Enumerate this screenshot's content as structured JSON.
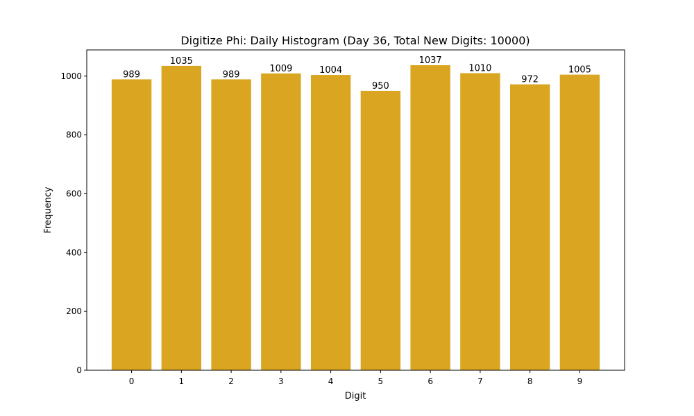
{
  "chart_data": {
    "type": "bar",
    "title": "Digitize Phi: Daily Histogram (Day 36, Total New Digits: 10000)",
    "xlabel": "Digit",
    "ylabel": "Frequency",
    "categories": [
      "0",
      "1",
      "2",
      "3",
      "4",
      "5",
      "6",
      "7",
      "8",
      "9"
    ],
    "values": [
      989,
      1035,
      989,
      1009,
      1004,
      950,
      1037,
      1010,
      972,
      1005
    ],
    "bar_labels": [
      "989",
      "1035",
      "989",
      "1009",
      "1004",
      "950",
      "1037",
      "1010",
      "972",
      "1005"
    ],
    "yticks": [
      0,
      200,
      400,
      600,
      800,
      1000
    ],
    "ylim": [
      0,
      1089
    ],
    "xlim": [
      -0.9,
      9.9
    ],
    "bar_color": "#DAA520",
    "grid": false,
    "legend": null
  }
}
